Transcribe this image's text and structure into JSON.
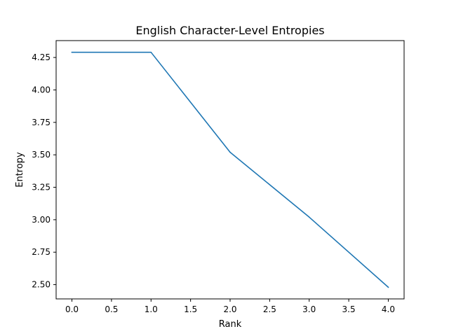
{
  "chart_data": {
    "type": "line",
    "title": "English Character-Level Entropies",
    "xlabel": "Rank",
    "ylabel": "Entropy",
    "x": [
      0,
      1,
      2,
      3,
      4
    ],
    "series": [
      {
        "values": [
          4.29,
          4.29,
          3.52,
          3.02,
          2.48
        ],
        "color": "#1f77b4"
      }
    ],
    "xlim": [
      -0.2,
      4.2
    ],
    "ylim": [
      2.39,
      4.38
    ],
    "xticks": [
      0.0,
      0.5,
      1.0,
      1.5,
      2.0,
      2.5,
      3.0,
      3.5,
      4.0
    ],
    "xtick_labels": [
      "0.0",
      "0.5",
      "1.0",
      "1.5",
      "2.0",
      "2.5",
      "3.0",
      "3.5",
      "4.0"
    ],
    "yticks": [
      2.5,
      2.75,
      3.0,
      3.25,
      3.5,
      3.75,
      4.0,
      4.25
    ],
    "ytick_labels": [
      "2.50",
      "2.75",
      "3.00",
      "3.25",
      "3.50",
      "3.75",
      "4.00",
      "4.25"
    ],
    "grid": false,
    "legend": false
  }
}
